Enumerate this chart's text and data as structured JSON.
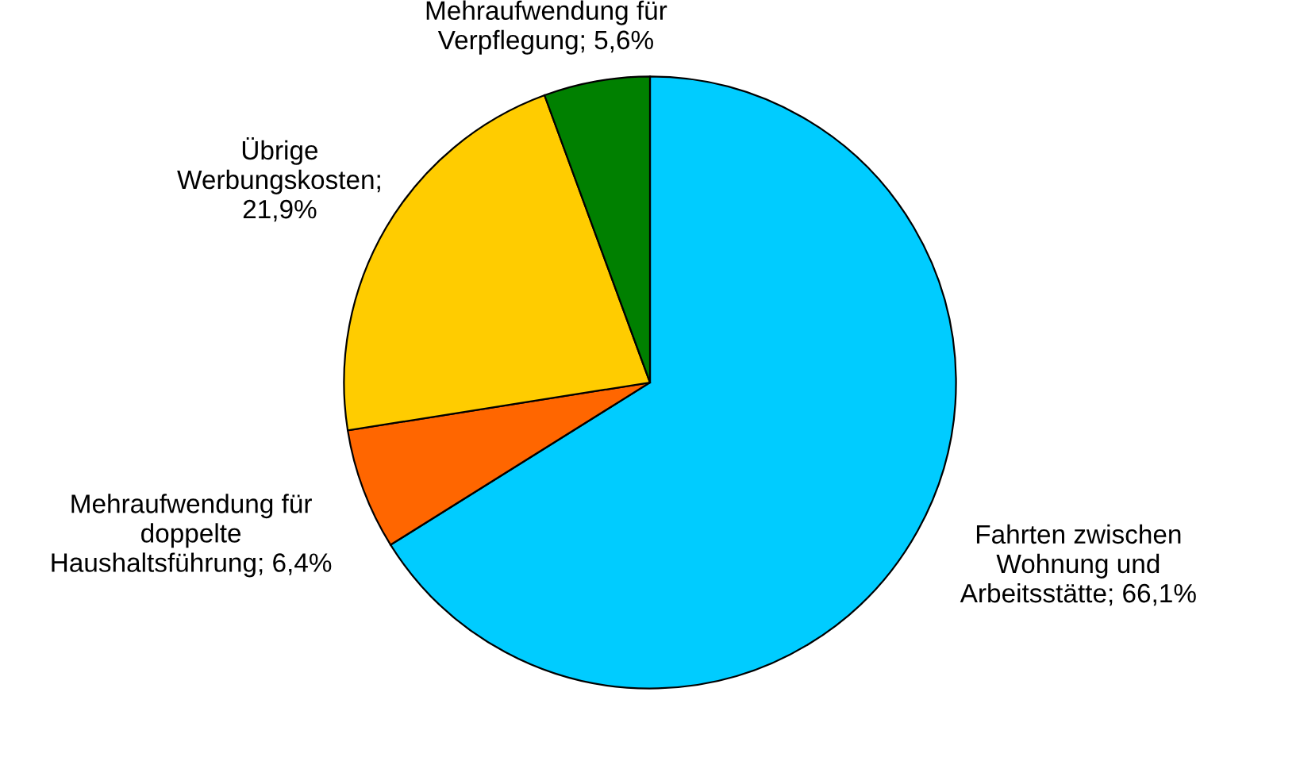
{
  "chart_data": {
    "type": "pie",
    "categories": [
      "Fahrten zwischen\nWohnung und\nArbeitsstätte; 66,1%",
      "Mehraufwendung für\ndoppelte\nHaushaltsführung; 6,4%",
      "Übrige\nWerbungskosten;\n21,9%",
      "Mehraufwendung für\nVerpflegung; 5,6%"
    ],
    "values": [
      66.1,
      6.4,
      21.9,
      5.6
    ],
    "colors": [
      "#00ccff",
      "#ff6600",
      "#ffcc00",
      "#008000"
    ],
    "legend": false
  }
}
